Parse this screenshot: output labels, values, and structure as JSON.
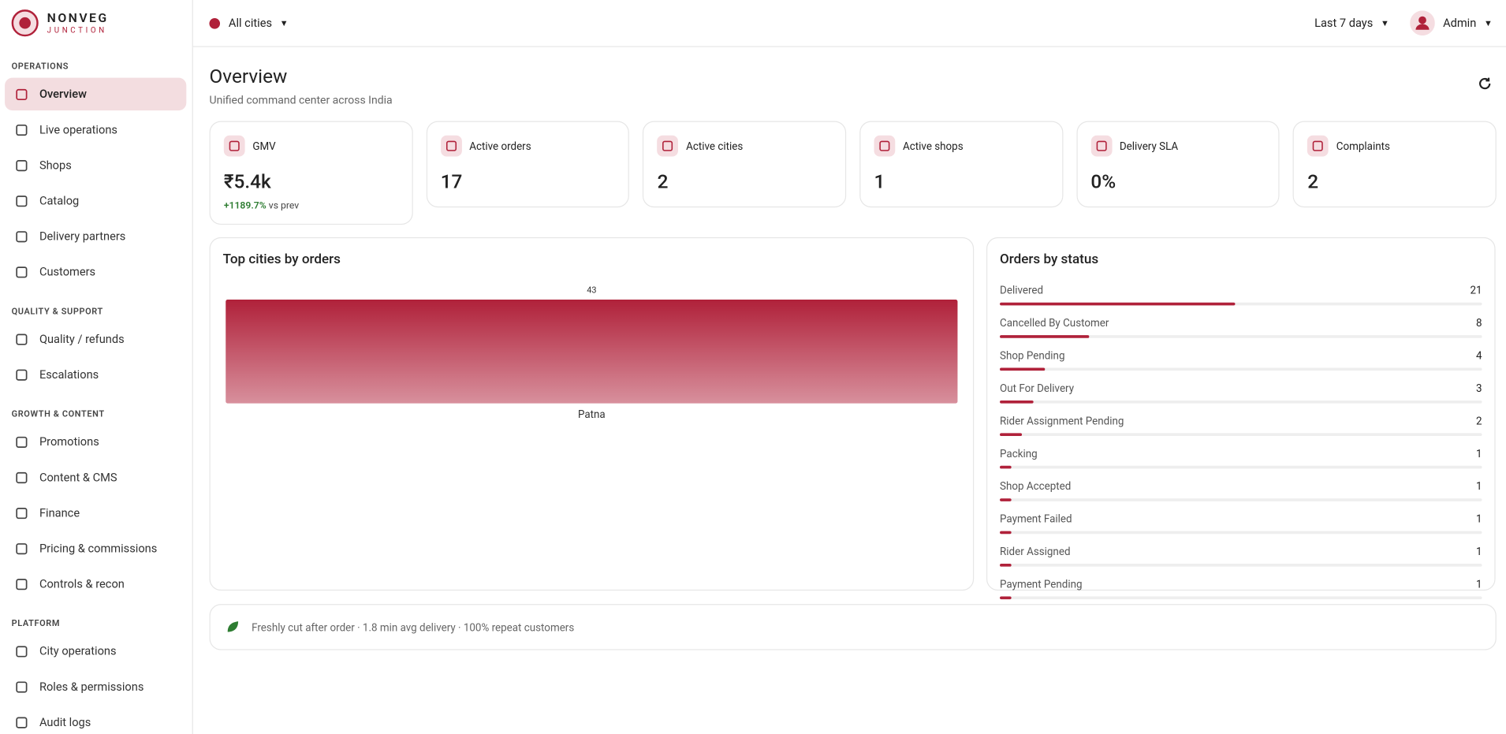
{
  "brand": {
    "name": "NONVEG",
    "tagline": "JUNCTION"
  },
  "sidebar": {
    "sections": [
      {
        "title": "OPERATIONS",
        "items": [
          "Overview",
          "Live operations",
          "Shops",
          "Catalog",
          "Delivery partners",
          "Customers"
        ]
      },
      {
        "title": "QUALITY & SUPPORT",
        "items": [
          "Quality / refunds",
          "Escalations"
        ]
      },
      {
        "title": "GROWTH & CONTENT",
        "items": [
          "Promotions",
          "Content & CMS",
          "Finance",
          "Pricing & commissions",
          "Controls & recon"
        ]
      },
      {
        "title": "PLATFORM",
        "items": [
          "City operations",
          "Roles & permissions",
          "Audit logs"
        ]
      }
    ],
    "active": "Overview"
  },
  "topbar": {
    "city": "All cities",
    "range": "Last 7 days",
    "user": "Admin"
  },
  "header": {
    "title": "Overview",
    "subtitle": "Unified command center across India"
  },
  "kpis": [
    {
      "label": "GMV",
      "value": "₹5.4k",
      "delta": "+1189.7%",
      "delta_note": "vs prev"
    },
    {
      "label": "Active orders",
      "value": "17"
    },
    {
      "label": "Active cities",
      "value": "2"
    },
    {
      "label": "Active shops",
      "value": "1"
    },
    {
      "label": "Delivery SLA",
      "value": "0%"
    },
    {
      "label": "Complaints",
      "value": "2"
    }
  ],
  "chart_data": {
    "type": "bar",
    "title": "Top cities by orders",
    "categories": [
      "Patna"
    ],
    "values": [
      43
    ],
    "color": "#b0213a"
  },
  "status": {
    "title": "Orders by status",
    "rows": [
      {
        "label": "Delivered",
        "value": 21
      },
      {
        "label": "Cancelled By Customer",
        "value": 8
      },
      {
        "label": "Shop Pending",
        "value": 4
      },
      {
        "label": "Out For Delivery",
        "value": 3
      },
      {
        "label": "Rider Assignment Pending",
        "value": 2
      },
      {
        "label": "Packing",
        "value": 1
      },
      {
        "label": "Shop Accepted",
        "value": 1
      },
      {
        "label": "Payment Failed",
        "value": 1
      },
      {
        "label": "Rider Assigned",
        "value": 1
      },
      {
        "label": "Payment Pending",
        "value": 1
      }
    ]
  },
  "footer": {
    "text": "Freshly cut after order · 1.8 min avg delivery · 100% repeat customers"
  }
}
